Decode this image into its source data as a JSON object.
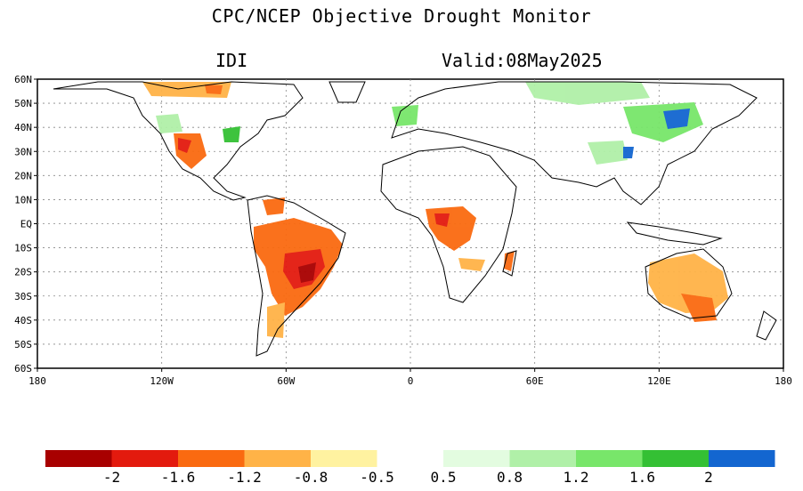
{
  "header": {
    "title": "CPC/NCEP Objective Drought Monitor",
    "index_label": "IDI",
    "valid_label": "Valid:08May2025"
  },
  "map": {
    "lat_labels": [
      "60N",
      "50N",
      "40N",
      "30N",
      "20N",
      "10N",
      "EQ",
      "10S",
      "20S",
      "30S",
      "40S",
      "50S",
      "60S"
    ],
    "lon_labels": [
      "180",
      "120W",
      "60W",
      "0",
      "60E",
      "120E",
      "180"
    ]
  },
  "legend": {
    "dry_colors": [
      "#a80000",
      "#e31a0e",
      "#fa6a10",
      "#ffb347",
      "#fff2a0"
    ],
    "wet_colors": [
      "#e3fce0",
      "#b0f0a8",
      "#78e66a",
      "#34c034",
      "#1366d0"
    ],
    "dry_labels": [
      "-2",
      "-1.6",
      "-1.2",
      "-0.8",
      "-0.5"
    ],
    "wet_labels": [
      "0.5",
      "0.8",
      "1.2",
      "1.6",
      "2"
    ]
  }
}
